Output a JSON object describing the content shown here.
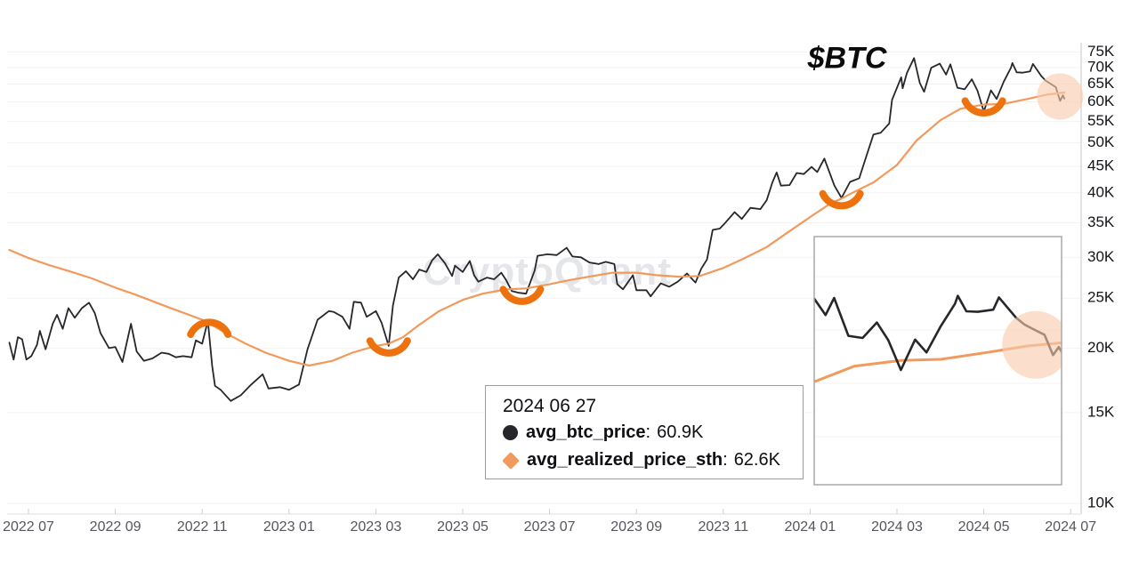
{
  "title_label": "$BTC",
  "watermark": "CryptoQuant",
  "colors": {
    "btc_line": "#26262b",
    "realized_line": "#F2995C",
    "annotation_orange": "#ED720D",
    "highlight_fill": "#F8CBAC",
    "grid": "#f3f3f3",
    "axis": "#d0d0d0",
    "bottom_axis": "#e2e2e2",
    "x_label": "#55555f",
    "y_label": "#141419",
    "tooltip_border": "#9e9e9e",
    "inset_border": "#a8a8a8",
    "watermark_color": "rgba(130,140,155,0.22)"
  },
  "tooltip": {
    "date": "2024 06 27",
    "colon": ":",
    "rows": [
      {
        "marker": "circle",
        "label": "avg_btc_price",
        "value": "60.9K"
      },
      {
        "marker": "diamond",
        "label": "avg_realized_price_sth",
        "value": "62.6K"
      }
    ]
  },
  "chart_data": {
    "type": "line",
    "title": "$BTC",
    "y_scale": "log",
    "y_axis_side": "right",
    "y_unit": "USD (thousands)",
    "ylim_k": [
      10,
      78
    ],
    "y_ticks_k": [
      75,
      70,
      65,
      60,
      55,
      50,
      45,
      40,
      35,
      30,
      25,
      20,
      15,
      10
    ],
    "x_ticks": [
      "2022 07",
      "2022 09",
      "2022 11",
      "2023 01",
      "2023 03",
      "2023 05",
      "2023 07",
      "2023 09",
      "2023 11",
      "2024 01",
      "2024 03",
      "2024 05",
      "2024 07"
    ],
    "grid": "horizontal",
    "legend_position": "tooltip",
    "series": [
      {
        "name": "avg_btc_price",
        "color_key": "btc_line",
        "points_date_valueK": [
          [
            "2022-06-18",
            20.5
          ],
          [
            "2022-06-21",
            19.0
          ],
          [
            "2022-06-24",
            21.0
          ],
          [
            "2022-06-27",
            20.8
          ],
          [
            "2022-06-30",
            19.0
          ],
          [
            "2022-07-03",
            19.3
          ],
          [
            "2022-07-07",
            20.3
          ],
          [
            "2022-07-09",
            21.6
          ],
          [
            "2022-07-13",
            19.9
          ],
          [
            "2022-07-18",
            22.3
          ],
          [
            "2022-07-21",
            23.2
          ],
          [
            "2022-07-25",
            21.8
          ],
          [
            "2022-07-29",
            23.9
          ],
          [
            "2022-08-03",
            22.9
          ],
          [
            "2022-08-08",
            23.9
          ],
          [
            "2022-08-13",
            24.5
          ],
          [
            "2022-08-17",
            23.4
          ],
          [
            "2022-08-21",
            21.4
          ],
          [
            "2022-08-27",
            20.0
          ],
          [
            "2022-09-01",
            20.1
          ],
          [
            "2022-09-06",
            18.8
          ],
          [
            "2022-09-12",
            22.3
          ],
          [
            "2022-09-16",
            19.7
          ],
          [
            "2022-09-21",
            18.9
          ],
          [
            "2022-09-27",
            19.1
          ],
          [
            "2022-10-03",
            19.6
          ],
          [
            "2022-10-08",
            19.5
          ],
          [
            "2022-10-13",
            19.2
          ],
          [
            "2022-10-18",
            19.3
          ],
          [
            "2022-10-24",
            19.2
          ],
          [
            "2022-10-27",
            20.7
          ],
          [
            "2022-11-01",
            20.4
          ],
          [
            "2022-11-05",
            22.6
          ],
          [
            "2022-11-08",
            18.5
          ],
          [
            "2022-11-10",
            16.9
          ],
          [
            "2022-11-14",
            16.6
          ],
          [
            "2022-11-21",
            15.8
          ],
          [
            "2022-11-28",
            16.2
          ],
          [
            "2022-12-05",
            17.0
          ],
          [
            "2022-12-13",
            17.8
          ],
          [
            "2022-12-17",
            16.7
          ],
          [
            "2022-12-25",
            16.8
          ],
          [
            "2023-01-01",
            16.6
          ],
          [
            "2023-01-08",
            17.0
          ],
          [
            "2023-01-14",
            19.9
          ],
          [
            "2023-01-21",
            22.7
          ],
          [
            "2023-01-29",
            23.6
          ],
          [
            "2023-02-02",
            23.5
          ],
          [
            "2023-02-08",
            23.0
          ],
          [
            "2023-02-13",
            21.8
          ],
          [
            "2023-02-16",
            24.6
          ],
          [
            "2023-02-21",
            24.5
          ],
          [
            "2023-02-25",
            23.0
          ],
          [
            "2023-03-01",
            23.6
          ],
          [
            "2023-03-05",
            22.4
          ],
          [
            "2023-03-10",
            20.2
          ],
          [
            "2023-03-13",
            24.2
          ],
          [
            "2023-03-17",
            27.4
          ],
          [
            "2023-03-22",
            28.2
          ],
          [
            "2023-03-27",
            27.2
          ],
          [
            "2023-04-01",
            28.4
          ],
          [
            "2023-04-06",
            28.1
          ],
          [
            "2023-04-10",
            29.6
          ],
          [
            "2023-04-14",
            30.4
          ],
          [
            "2023-04-19",
            29.2
          ],
          [
            "2023-04-24",
            27.6
          ],
          [
            "2023-04-26",
            28.9
          ],
          [
            "2023-05-01",
            28.1
          ],
          [
            "2023-05-06",
            29.5
          ],
          [
            "2023-05-09",
            27.7
          ],
          [
            "2023-05-12",
            26.9
          ],
          [
            "2023-05-18",
            27.4
          ],
          [
            "2023-05-23",
            27.2
          ],
          [
            "2023-05-28",
            28.0
          ],
          [
            "2023-06-01",
            27.1
          ],
          [
            "2023-06-05",
            25.8
          ],
          [
            "2023-06-10",
            25.6
          ],
          [
            "2023-06-15",
            25.5
          ],
          [
            "2023-06-21",
            28.3
          ],
          [
            "2023-06-23",
            30.2
          ],
          [
            "2023-06-30",
            30.4
          ],
          [
            "2023-07-06",
            30.3
          ],
          [
            "2023-07-13",
            31.3
          ],
          [
            "2023-07-17",
            30.1
          ],
          [
            "2023-07-23",
            30.0
          ],
          [
            "2023-07-29",
            29.3
          ],
          [
            "2023-08-05",
            29.1
          ],
          [
            "2023-08-10",
            29.4
          ],
          [
            "2023-08-16",
            29.1
          ],
          [
            "2023-08-18",
            26.6
          ],
          [
            "2023-08-22",
            26.0
          ],
          [
            "2023-08-29",
            27.7
          ],
          [
            "2023-09-01",
            25.9
          ],
          [
            "2023-09-08",
            25.9
          ],
          [
            "2023-09-11",
            25.2
          ],
          [
            "2023-09-18",
            26.7
          ],
          [
            "2023-09-24",
            26.3
          ],
          [
            "2023-09-30",
            26.9
          ],
          [
            "2023-10-06",
            27.9
          ],
          [
            "2023-10-12",
            26.8
          ],
          [
            "2023-10-16",
            28.5
          ],
          [
            "2023-10-20",
            29.7
          ],
          [
            "2023-10-24",
            33.9
          ],
          [
            "2023-10-29",
            34.1
          ],
          [
            "2023-11-02",
            34.9
          ],
          [
            "2023-11-09",
            36.7
          ],
          [
            "2023-11-14",
            35.6
          ],
          [
            "2023-11-20",
            37.4
          ],
          [
            "2023-11-27",
            37.2
          ],
          [
            "2023-12-01",
            38.7
          ],
          [
            "2023-12-05",
            41.9
          ],
          [
            "2023-12-08",
            43.8
          ],
          [
            "2023-12-11",
            41.3
          ],
          [
            "2023-12-17",
            41.4
          ],
          [
            "2023-12-22",
            43.7
          ],
          [
            "2023-12-27",
            43.5
          ],
          [
            "2024-01-02",
            44.9
          ],
          [
            "2024-01-06",
            43.9
          ],
          [
            "2024-01-11",
            46.6
          ],
          [
            "2024-01-18",
            41.3
          ],
          [
            "2024-01-23",
            39.1
          ],
          [
            "2024-01-29",
            42.0
          ],
          [
            "2024-02-05",
            42.7
          ],
          [
            "2024-02-10",
            47.1
          ],
          [
            "2024-02-15",
            51.9
          ],
          [
            "2024-02-20",
            52.3
          ],
          [
            "2024-02-26",
            54.5
          ],
          [
            "2024-02-28",
            60.6
          ],
          [
            "2024-03-04",
            67.0
          ],
          [
            "2024-03-05",
            63.8
          ],
          [
            "2024-03-08",
            68.3
          ],
          [
            "2024-03-13",
            73.0
          ],
          [
            "2024-03-17",
            65.3
          ],
          [
            "2024-03-20",
            62.8
          ],
          [
            "2024-03-25",
            69.9
          ],
          [
            "2024-03-31",
            71.2
          ],
          [
            "2024-04-05",
            67.8
          ],
          [
            "2024-04-08",
            71.0
          ],
          [
            "2024-04-13",
            63.9
          ],
          [
            "2024-04-18",
            63.5
          ],
          [
            "2024-04-23",
            66.4
          ],
          [
            "2024-04-27",
            63.1
          ],
          [
            "2024-05-01",
            57.5
          ],
          [
            "2024-05-06",
            63.2
          ],
          [
            "2024-05-10",
            60.8
          ],
          [
            "2024-05-15",
            65.7
          ],
          [
            "2024-05-20",
            69.9
          ],
          [
            "2024-05-21",
            71.4
          ],
          [
            "2024-05-24",
            68.5
          ],
          [
            "2024-05-28",
            68.4
          ],
          [
            "2024-06-03",
            68.8
          ],
          [
            "2024-06-05",
            71.1
          ],
          [
            "2024-06-11",
            67.3
          ],
          [
            "2024-06-14",
            66.0
          ],
          [
            "2024-06-18",
            64.9
          ],
          [
            "2024-06-21",
            64.1
          ],
          [
            "2024-06-24",
            60.3
          ],
          [
            "2024-06-26",
            61.8
          ],
          [
            "2024-06-27",
            60.9
          ]
        ]
      },
      {
        "name": "avg_realized_price_sth",
        "color_key": "realized_line",
        "points_date_valueK": [
          [
            "2022-06-18",
            31.0
          ],
          [
            "2022-07-01",
            29.9
          ],
          [
            "2022-07-15",
            29.0
          ],
          [
            "2022-08-01",
            28.1
          ],
          [
            "2022-08-15",
            27.3
          ],
          [
            "2022-09-01",
            26.2
          ],
          [
            "2022-09-15",
            25.4
          ],
          [
            "2022-10-01",
            24.4
          ],
          [
            "2022-10-15",
            23.6
          ],
          [
            "2022-11-01",
            22.7
          ],
          [
            "2022-11-10",
            22.0
          ],
          [
            "2022-11-20",
            21.2
          ],
          [
            "2022-12-01",
            20.4
          ],
          [
            "2022-12-15",
            19.6
          ],
          [
            "2023-01-01",
            18.9
          ],
          [
            "2023-01-15",
            18.5
          ],
          [
            "2023-02-01",
            18.9
          ],
          [
            "2023-02-15",
            19.6
          ],
          [
            "2023-03-01",
            20.2
          ],
          [
            "2023-03-10",
            20.4
          ],
          [
            "2023-03-20",
            21.0
          ],
          [
            "2023-04-01",
            22.2
          ],
          [
            "2023-04-15",
            23.6
          ],
          [
            "2023-05-01",
            24.8
          ],
          [
            "2023-05-15",
            25.5
          ],
          [
            "2023-06-01",
            26.0
          ],
          [
            "2023-06-15",
            26.1
          ],
          [
            "2023-07-01",
            26.6
          ],
          [
            "2023-07-15",
            27.1
          ],
          [
            "2023-08-01",
            27.6
          ],
          [
            "2023-08-15",
            28.0
          ],
          [
            "2023-09-01",
            28.0
          ],
          [
            "2023-09-15",
            27.7
          ],
          [
            "2023-10-01",
            27.5
          ],
          [
            "2023-10-15",
            27.6
          ],
          [
            "2023-11-01",
            28.6
          ],
          [
            "2023-11-15",
            29.8
          ],
          [
            "2023-12-01",
            31.4
          ],
          [
            "2023-12-15",
            33.4
          ],
          [
            "2024-01-01",
            35.9
          ],
          [
            "2024-01-15",
            38.1
          ],
          [
            "2024-01-23",
            39.0
          ],
          [
            "2024-02-01",
            40.1
          ],
          [
            "2024-02-15",
            41.9
          ],
          [
            "2024-03-01",
            45.3
          ],
          [
            "2024-03-15",
            50.6
          ],
          [
            "2024-04-01",
            55.3
          ],
          [
            "2024-04-15",
            58.2
          ],
          [
            "2024-05-01",
            59.3
          ],
          [
            "2024-05-15",
            59.5
          ],
          [
            "2024-06-01",
            60.8
          ],
          [
            "2024-06-15",
            62.0
          ],
          [
            "2024-06-27",
            62.6
          ]
        ]
      }
    ],
    "annotations": [
      {
        "shape": "arch",
        "date": "2022-11-06",
        "value_k": 22.3
      },
      {
        "shape": "u",
        "date": "2023-03-10",
        "value_k": 19.7
      },
      {
        "shape": "u",
        "date": "2023-06-12",
        "value_k": 24.8
      },
      {
        "shape": "u",
        "date": "2024-01-23",
        "value_k": 38.0
      },
      {
        "shape": "u",
        "date": "2024-05-01",
        "value_k": 57.5
      },
      {
        "shape": "circle",
        "date": "2024-06-24",
        "value_k": 61.5
      }
    ],
    "inset": {
      "date_range": [
        "2024-04-01",
        "2024-06-27"
      ],
      "value_range_k": [
        36,
        82.5
      ],
      "gridline_values_k": [
        75,
        65,
        55,
        45
      ],
      "highlight": {
        "date": "2024-06-18",
        "value_k": 62.2
      }
    }
  }
}
